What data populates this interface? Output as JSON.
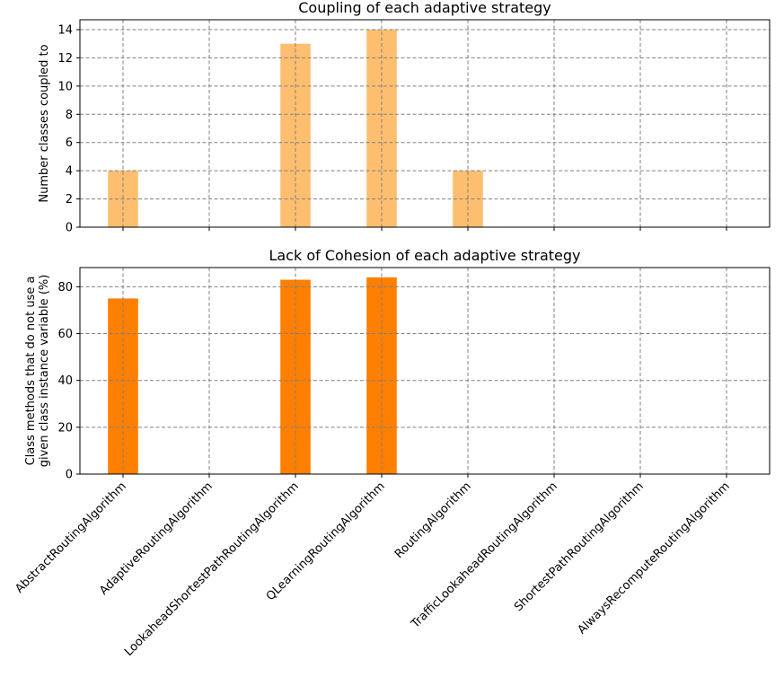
{
  "chart_data": [
    {
      "type": "bar",
      "title": "Coupling of each adaptive strategy",
      "ylabel": "Number classes coupled to",
      "xlabel": "",
      "categories": [
        "AbstractRoutingAlgorithm",
        "AdaptiveRoutingAlgorithm",
        "LookaheadShortestPathRoutingAlgorithm",
        "QLearningRoutingAlgorithm",
        "RoutingAlgorithm",
        "TrafficLookaheadRoutingAlgorithm",
        "ShortestPathRoutingAlgorithm",
        "AlwaysRecomputeRoutingAlgorithm"
      ],
      "values": [
        4,
        0,
        13,
        14,
        4,
        0,
        0,
        0
      ],
      "ylim": [
        0,
        14.7
      ],
      "yticks": [
        "0",
        "2",
        "4",
        "6",
        "8",
        "10",
        "12",
        "14"
      ],
      "grid": true,
      "color": "#fdbf6f",
      "show_xtick_labels": false
    },
    {
      "type": "bar",
      "title": "Lack of Cohesion of each adaptive strategy",
      "ylabel_lines": [
        "Class methods that do not  use a",
        "given class instance variable (%)"
      ],
      "xlabel": "",
      "categories": [
        "AbstractRoutingAlgorithm",
        "AdaptiveRoutingAlgorithm",
        "LookaheadShortestPathRoutingAlgorithm",
        "QLearningRoutingAlgorithm",
        "RoutingAlgorithm",
        "TrafficLookaheadRoutingAlgorithm",
        "ShortestPathRoutingAlgorithm",
        "AlwaysRecomputeRoutingAlgorithm"
      ],
      "values": [
        75,
        0,
        83,
        84,
        0,
        0,
        0,
        0
      ],
      "ylim": [
        0,
        88.2
      ],
      "yticks": [
        "0",
        "20",
        "40",
        "60",
        "80"
      ],
      "grid": true,
      "color": "#ff7f00",
      "show_xtick_labels": true
    }
  ]
}
